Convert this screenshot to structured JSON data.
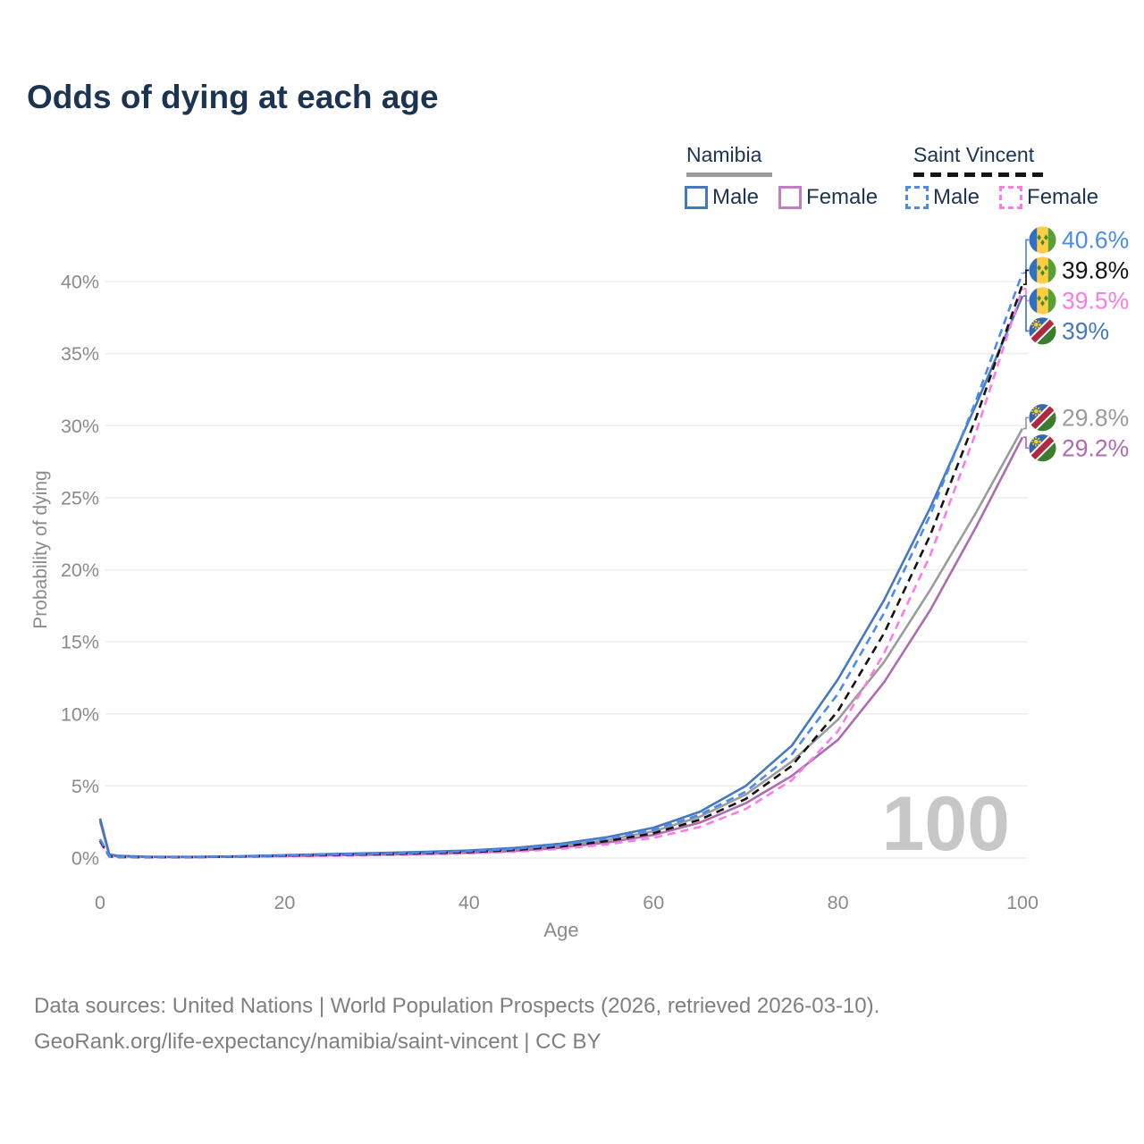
{
  "title": "Odds of dying at each age",
  "legend": {
    "namibia": {
      "title": "Namibia",
      "male_label": "Male",
      "female_label": "Female"
    },
    "saint_vincent": {
      "title": "Saint Vincent",
      "male_label": "Male",
      "female_label": "Female"
    }
  },
  "watermark": "100",
  "footer": {
    "line1": "Data sources: United Nations | World Population Prospects (2026, retrieved 2026-03-10).",
    "line2": "GeoRank.org/life-expectancy/namibia/saint-vincent | CC BY"
  },
  "colors": {
    "title_text": "#1b3452",
    "legend_text": "#1e3452",
    "axis_text": "#8a8a8a",
    "gridline": "#ededed",
    "watermark": "#c7c7c7",
    "footer_text": "#7f7f7f",
    "namibia_underline": "#9b9b9b",
    "saint_vincent_underline": "#141414"
  },
  "chart_data": {
    "type": "line",
    "title": "Odds of dying at each age",
    "xlabel": "Age",
    "ylabel": "Probability of dying",
    "xlim": [
      0,
      100
    ],
    "ylim_percent": [
      0,
      43
    ],
    "x_ticks": [
      0,
      20,
      40,
      60,
      80,
      100
    ],
    "y_tick_values": [
      0,
      5,
      10,
      15,
      20,
      25,
      30,
      35,
      40
    ],
    "y_tick_labels": [
      "0%",
      "5%",
      "10%",
      "15%",
      "20%",
      "25%",
      "30%",
      "35%",
      "40%"
    ],
    "grid": true,
    "legend_position": "top-right",
    "x": [
      0,
      1,
      2,
      5,
      10,
      15,
      20,
      25,
      30,
      35,
      40,
      45,
      50,
      55,
      60,
      65,
      70,
      75,
      80,
      85,
      90,
      95,
      100
    ],
    "series": [
      {
        "id": "nam-total",
        "name": "Namibia",
        "color": "#9b9b9b",
        "dash": false,
        "values": [
          2.65,
          0.22,
          0.13,
          0.08,
          0.07,
          0.1,
          0.16,
          0.22,
          0.28,
          0.34,
          0.43,
          0.58,
          0.85,
          1.25,
          1.85,
          2.85,
          4.4,
          6.7,
          9.6,
          13.6,
          18.6,
          24.0,
          29.8
        ],
        "end_label": "29.8%",
        "flag": "na"
      },
      {
        "id": "nam-female",
        "name": "Namibia Female",
        "color": "#ad6cb1",
        "dash": false,
        "values": [
          2.55,
          0.2,
          0.12,
          0.075,
          0.065,
          0.09,
          0.13,
          0.18,
          0.23,
          0.28,
          0.36,
          0.49,
          0.72,
          1.08,
          1.6,
          2.45,
          3.8,
          5.7,
          8.2,
          12.2,
          17.2,
          23.0,
          29.2
        ],
        "end_label": "29.2%",
        "flag": "na"
      },
      {
        "id": "nam-male",
        "name": "Namibia Male",
        "color": "#4678bc",
        "dash": false,
        "values": [
          2.75,
          0.25,
          0.15,
          0.09,
          0.08,
          0.12,
          0.2,
          0.28,
          0.35,
          0.42,
          0.52,
          0.7,
          1.0,
          1.45,
          2.1,
          3.2,
          5.0,
          7.8,
          12.4,
          17.9,
          24.3,
          31.5,
          39.0
        ],
        "end_label": "39%",
        "flag": "na"
      },
      {
        "id": "sv-female",
        "name": "Saint Vincent Female",
        "color": "#fb7ce6",
        "dash": true,
        "values": [
          1.1,
          0.1,
          0.065,
          0.05,
          0.06,
          0.08,
          0.11,
          0.15,
          0.19,
          0.24,
          0.32,
          0.44,
          0.64,
          0.95,
          1.4,
          2.15,
          3.4,
          5.4,
          8.8,
          14.2,
          21.0,
          29.6,
          39.5
        ],
        "end_label": "39.5%",
        "flag": "sv"
      },
      {
        "id": "sv-total",
        "name": "Saint Vincent",
        "color": "#141414",
        "dash": true,
        "values": [
          1.2,
          0.11,
          0.07,
          0.055,
          0.065,
          0.1,
          0.16,
          0.21,
          0.26,
          0.32,
          0.41,
          0.55,
          0.8,
          1.18,
          1.72,
          2.65,
          4.1,
          6.4,
          10.2,
          15.6,
          22.4,
          30.6,
          39.8
        ],
        "end_label": "39.8%",
        "flag": "sv"
      },
      {
        "id": "sv-male",
        "name": "Saint Vincent Male",
        "color": "#4c8af0",
        "dash": true,
        "values": [
          1.3,
          0.12,
          0.08,
          0.06,
          0.07,
          0.11,
          0.18,
          0.24,
          0.3,
          0.37,
          0.47,
          0.63,
          0.92,
          1.35,
          1.95,
          3.0,
          4.6,
          7.2,
          11.4,
          17.0,
          23.8,
          31.8,
          40.6
        ],
        "end_label": "40.6%",
        "flag": "sv"
      }
    ]
  }
}
